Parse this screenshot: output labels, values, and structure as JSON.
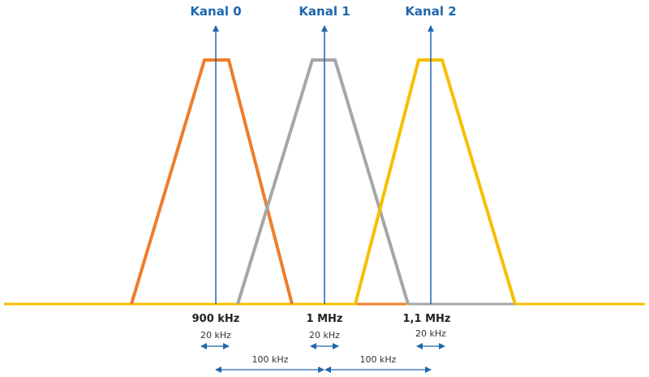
{
  "channels": [
    {
      "label": "Kanal 0",
      "frequency": "900 kHz",
      "bandwidth": "20 kHz"
    },
    {
      "label": "Kanal 1",
      "frequency": "1 MHz",
      "bandwidth": "20 kHz"
    },
    {
      "label": "Kanal 2",
      "frequency": "1,1 MHz",
      "bandwidth": "20 kHz"
    }
  ],
  "spacings": [
    "100 kHz",
    "100 kHz"
  ]
}
